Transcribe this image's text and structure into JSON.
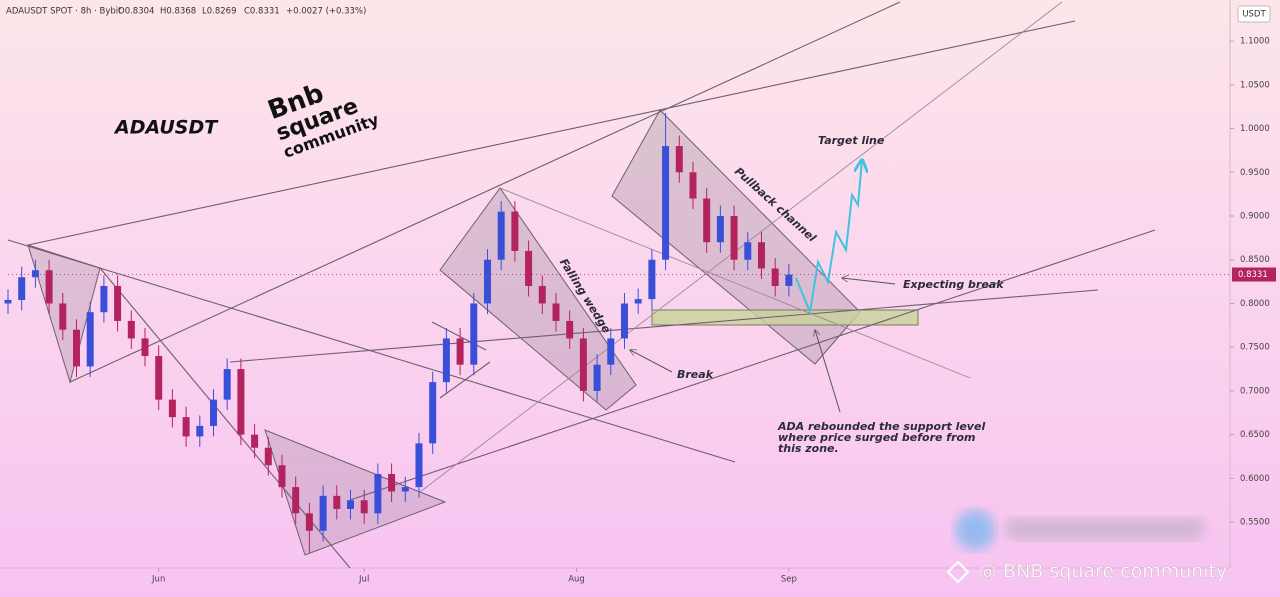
{
  "chart_data": {
    "type": "candlestick",
    "header": {
      "symbol": "ADAUSDT SPOT · 8h · Bybit",
      "ohlc": [
        "O0.8304",
        "H0.8368",
        "L0.8269",
        "C0.8331"
      ],
      "change": "+0.0027 (+0.33%)"
    },
    "currency": "USDT",
    "title": "ADAUSDT",
    "watermark": [
      "Bnb",
      "square",
      "community"
    ],
    "footer": "@ BNB square community",
    "annotations": {
      "target": "Target line",
      "pullback": "Pullback channel",
      "wedge": "Falling wedge",
      "expecting": "Expecting break",
      "break": "Break",
      "rebound": [
        "ADA rebounded the support level",
        "where price surged before from",
        "this zone."
      ]
    },
    "up_color": "#3a4fd8",
    "down_color": "#b3245f",
    "last_price": {
      "value": 0.8331,
      "label": "0.8331"
    },
    "x": [
      0,
      2,
      4,
      6,
      8,
      10,
      12,
      14,
      16,
      18,
      20,
      22,
      24,
      26,
      28,
      30,
      32,
      34,
      36,
      38,
      40,
      42,
      44,
      46,
      48,
      50,
      52,
      54,
      56,
      58,
      60,
      62,
      64,
      66,
      68,
      70,
      72,
      74,
      76,
      78,
      80,
      82,
      84,
      86,
      88,
      90,
      92,
      94,
      96,
      98,
      100,
      102,
      104,
      106,
      108,
      110,
      112,
      114
    ],
    "open": [
      0.8,
      0.804,
      0.83,
      0.838,
      0.8,
      0.77,
      0.728,
      0.79,
      0.82,
      0.78,
      0.76,
      0.74,
      0.69,
      0.67,
      0.648,
      0.66,
      0.69,
      0.725,
      0.65,
      0.635,
      0.615,
      0.59,
      0.56,
      0.54,
      0.58,
      0.565,
      0.575,
      0.56,
      0.605,
      0.585,
      0.59,
      0.64,
      0.71,
      0.76,
      0.73,
      0.8,
      0.85,
      0.905,
      0.86,
      0.82,
      0.8,
      0.78,
      0.76,
      0.7,
      0.73,
      0.76,
      0.8,
      0.805,
      0.85,
      0.98,
      0.95,
      0.92,
      0.87,
      0.9,
      0.85,
      0.87,
      0.84,
      0.82
    ],
    "high": [
      0.816,
      0.842,
      0.85,
      0.85,
      0.812,
      0.782,
      0.802,
      0.832,
      0.832,
      0.792,
      0.772,
      0.752,
      0.702,
      0.682,
      0.672,
      0.702,
      0.737,
      0.737,
      0.662,
      0.647,
      0.627,
      0.602,
      0.572,
      0.592,
      0.592,
      0.587,
      0.587,
      0.617,
      0.617,
      0.602,
      0.652,
      0.722,
      0.772,
      0.772,
      0.812,
      0.862,
      0.917,
      0.917,
      0.872,
      0.832,
      0.812,
      0.792,
      0.772,
      0.742,
      0.772,
      0.812,
      0.817,
      0.862,
      1.018,
      0.992,
      0.962,
      0.932,
      0.912,
      0.912,
      0.882,
      0.882,
      0.852,
      0.845
    ],
    "low": [
      0.788,
      0.792,
      0.818,
      0.788,
      0.758,
      0.716,
      0.716,
      0.778,
      0.768,
      0.748,
      0.728,
      0.678,
      0.658,
      0.636,
      0.636,
      0.648,
      0.678,
      0.638,
      0.623,
      0.603,
      0.578,
      0.548,
      0.515,
      0.528,
      0.553,
      0.553,
      0.548,
      0.548,
      0.573,
      0.573,
      0.578,
      0.628,
      0.698,
      0.718,
      0.718,
      0.788,
      0.838,
      0.848,
      0.808,
      0.788,
      0.768,
      0.748,
      0.688,
      0.688,
      0.718,
      0.748,
      0.788,
      0.793,
      0.838,
      0.938,
      0.908,
      0.858,
      0.858,
      0.838,
      0.838,
      0.828,
      0.808,
      0.808
    ],
    "close": [
      0.804,
      0.83,
      0.838,
      0.8,
      0.77,
      0.728,
      0.79,
      0.82,
      0.78,
      0.76,
      0.74,
      0.69,
      0.67,
      0.648,
      0.66,
      0.69,
      0.725,
      0.65,
      0.635,
      0.615,
      0.59,
      0.56,
      0.54,
      0.58,
      0.565,
      0.575,
      0.56,
      0.605,
      0.585,
      0.59,
      0.64,
      0.71,
      0.76,
      0.73,
      0.8,
      0.85,
      0.905,
      0.86,
      0.82,
      0.8,
      0.78,
      0.76,
      0.7,
      0.73,
      0.76,
      0.8,
      0.805,
      0.85,
      0.98,
      0.95,
      0.92,
      0.87,
      0.9,
      0.85,
      0.87,
      0.84,
      0.82,
      0.833
    ],
    "xlim": [
      0,
      178.4
    ],
    "xticks": [
      {
        "value": 22,
        "label": "Jun"
      },
      {
        "value": 52,
        "label": "Jul"
      },
      {
        "value": 83,
        "label": "Aug"
      },
      {
        "value": 114,
        "label": "Sep"
      }
    ],
    "ylim": [
      0.4975,
      1.147
    ],
    "yticks": [
      {
        "value": 0.55,
        "label": "0.5500"
      },
      {
        "value": 0.6,
        "label": "0.6000"
      },
      {
        "value": 0.65,
        "label": "0.6500"
      },
      {
        "value": 0.7,
        "label": "0.7000"
      },
      {
        "value": 0.75,
        "label": "0.7500"
      },
      {
        "value": 0.8,
        "label": "0.8000"
      },
      {
        "value": 0.85,
        "label": "0.8500"
      },
      {
        "value": 0.9,
        "label": "0.9000"
      },
      {
        "value": 0.95,
        "label": "0.9500"
      },
      {
        "value": 1.0,
        "label": "1.0000"
      },
      {
        "value": 1.05,
        "label": "1.0500"
      },
      {
        "value": 1.1,
        "label": "1.1000"
      }
    ]
  }
}
